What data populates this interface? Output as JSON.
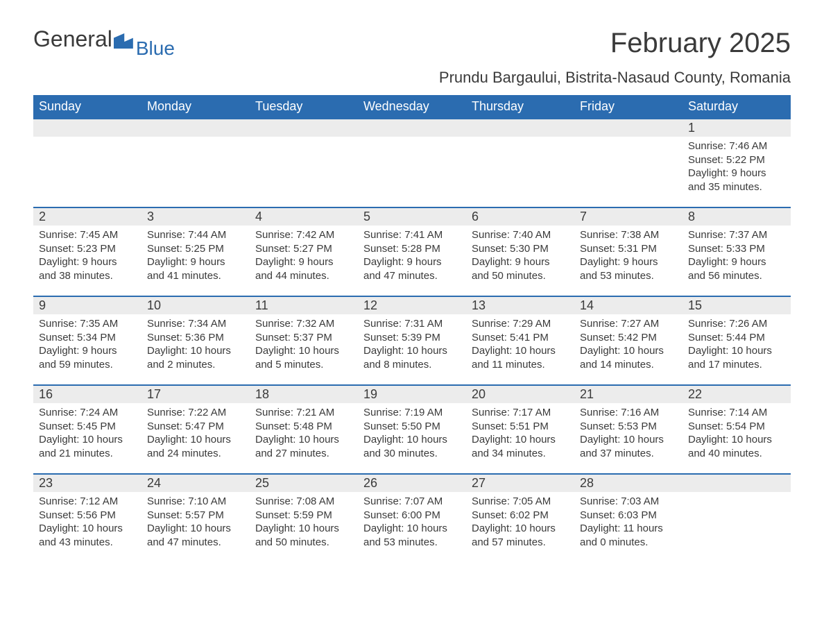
{
  "brand": {
    "part1": "General",
    "part2": "Blue"
  },
  "title": "February 2025",
  "location": "Prundu Bargaului, Bistrita-Nasaud County, Romania",
  "colors": {
    "header_bg": "#2b6cb0",
    "header_fg": "#ffffff",
    "daynum_bg": "#ececec",
    "text": "#3a3a3a",
    "rule": "#2b6cb0",
    "page_bg": "#ffffff"
  },
  "day_headers": [
    "Sunday",
    "Monday",
    "Tuesday",
    "Wednesday",
    "Thursday",
    "Friday",
    "Saturday"
  ],
  "labels": {
    "sunrise": "Sunrise:",
    "sunset": "Sunset:",
    "daylight": "Daylight:"
  },
  "weeks": [
    [
      null,
      null,
      null,
      null,
      null,
      null,
      {
        "n": "1",
        "sr": "7:46 AM",
        "ss": "5:22 PM",
        "dl": "9 hours and 35 minutes."
      }
    ],
    [
      {
        "n": "2",
        "sr": "7:45 AM",
        "ss": "5:23 PM",
        "dl": "9 hours and 38 minutes."
      },
      {
        "n": "3",
        "sr": "7:44 AM",
        "ss": "5:25 PM",
        "dl": "9 hours and 41 minutes."
      },
      {
        "n": "4",
        "sr": "7:42 AM",
        "ss": "5:27 PM",
        "dl": "9 hours and 44 minutes."
      },
      {
        "n": "5",
        "sr": "7:41 AM",
        "ss": "5:28 PM",
        "dl": "9 hours and 47 minutes."
      },
      {
        "n": "6",
        "sr": "7:40 AM",
        "ss": "5:30 PM",
        "dl": "9 hours and 50 minutes."
      },
      {
        "n": "7",
        "sr": "7:38 AM",
        "ss": "5:31 PM",
        "dl": "9 hours and 53 minutes."
      },
      {
        "n": "8",
        "sr": "7:37 AM",
        "ss": "5:33 PM",
        "dl": "9 hours and 56 minutes."
      }
    ],
    [
      {
        "n": "9",
        "sr": "7:35 AM",
        "ss": "5:34 PM",
        "dl": "9 hours and 59 minutes."
      },
      {
        "n": "10",
        "sr": "7:34 AM",
        "ss": "5:36 PM",
        "dl": "10 hours and 2 minutes."
      },
      {
        "n": "11",
        "sr": "7:32 AM",
        "ss": "5:37 PM",
        "dl": "10 hours and 5 minutes."
      },
      {
        "n": "12",
        "sr": "7:31 AM",
        "ss": "5:39 PM",
        "dl": "10 hours and 8 minutes."
      },
      {
        "n": "13",
        "sr": "7:29 AM",
        "ss": "5:41 PM",
        "dl": "10 hours and 11 minutes."
      },
      {
        "n": "14",
        "sr": "7:27 AM",
        "ss": "5:42 PM",
        "dl": "10 hours and 14 minutes."
      },
      {
        "n": "15",
        "sr": "7:26 AM",
        "ss": "5:44 PM",
        "dl": "10 hours and 17 minutes."
      }
    ],
    [
      {
        "n": "16",
        "sr": "7:24 AM",
        "ss": "5:45 PM",
        "dl": "10 hours and 21 minutes."
      },
      {
        "n": "17",
        "sr": "7:22 AM",
        "ss": "5:47 PM",
        "dl": "10 hours and 24 minutes."
      },
      {
        "n": "18",
        "sr": "7:21 AM",
        "ss": "5:48 PM",
        "dl": "10 hours and 27 minutes."
      },
      {
        "n": "19",
        "sr": "7:19 AM",
        "ss": "5:50 PM",
        "dl": "10 hours and 30 minutes."
      },
      {
        "n": "20",
        "sr": "7:17 AM",
        "ss": "5:51 PM",
        "dl": "10 hours and 34 minutes."
      },
      {
        "n": "21",
        "sr": "7:16 AM",
        "ss": "5:53 PM",
        "dl": "10 hours and 37 minutes."
      },
      {
        "n": "22",
        "sr": "7:14 AM",
        "ss": "5:54 PM",
        "dl": "10 hours and 40 minutes."
      }
    ],
    [
      {
        "n": "23",
        "sr": "7:12 AM",
        "ss": "5:56 PM",
        "dl": "10 hours and 43 minutes."
      },
      {
        "n": "24",
        "sr": "7:10 AM",
        "ss": "5:57 PM",
        "dl": "10 hours and 47 minutes."
      },
      {
        "n": "25",
        "sr": "7:08 AM",
        "ss": "5:59 PM",
        "dl": "10 hours and 50 minutes."
      },
      {
        "n": "26",
        "sr": "7:07 AM",
        "ss": "6:00 PM",
        "dl": "10 hours and 53 minutes."
      },
      {
        "n": "27",
        "sr": "7:05 AM",
        "ss": "6:02 PM",
        "dl": "10 hours and 57 minutes."
      },
      {
        "n": "28",
        "sr": "7:03 AM",
        "ss": "6:03 PM",
        "dl": "11 hours and 0 minutes."
      },
      null
    ]
  ]
}
